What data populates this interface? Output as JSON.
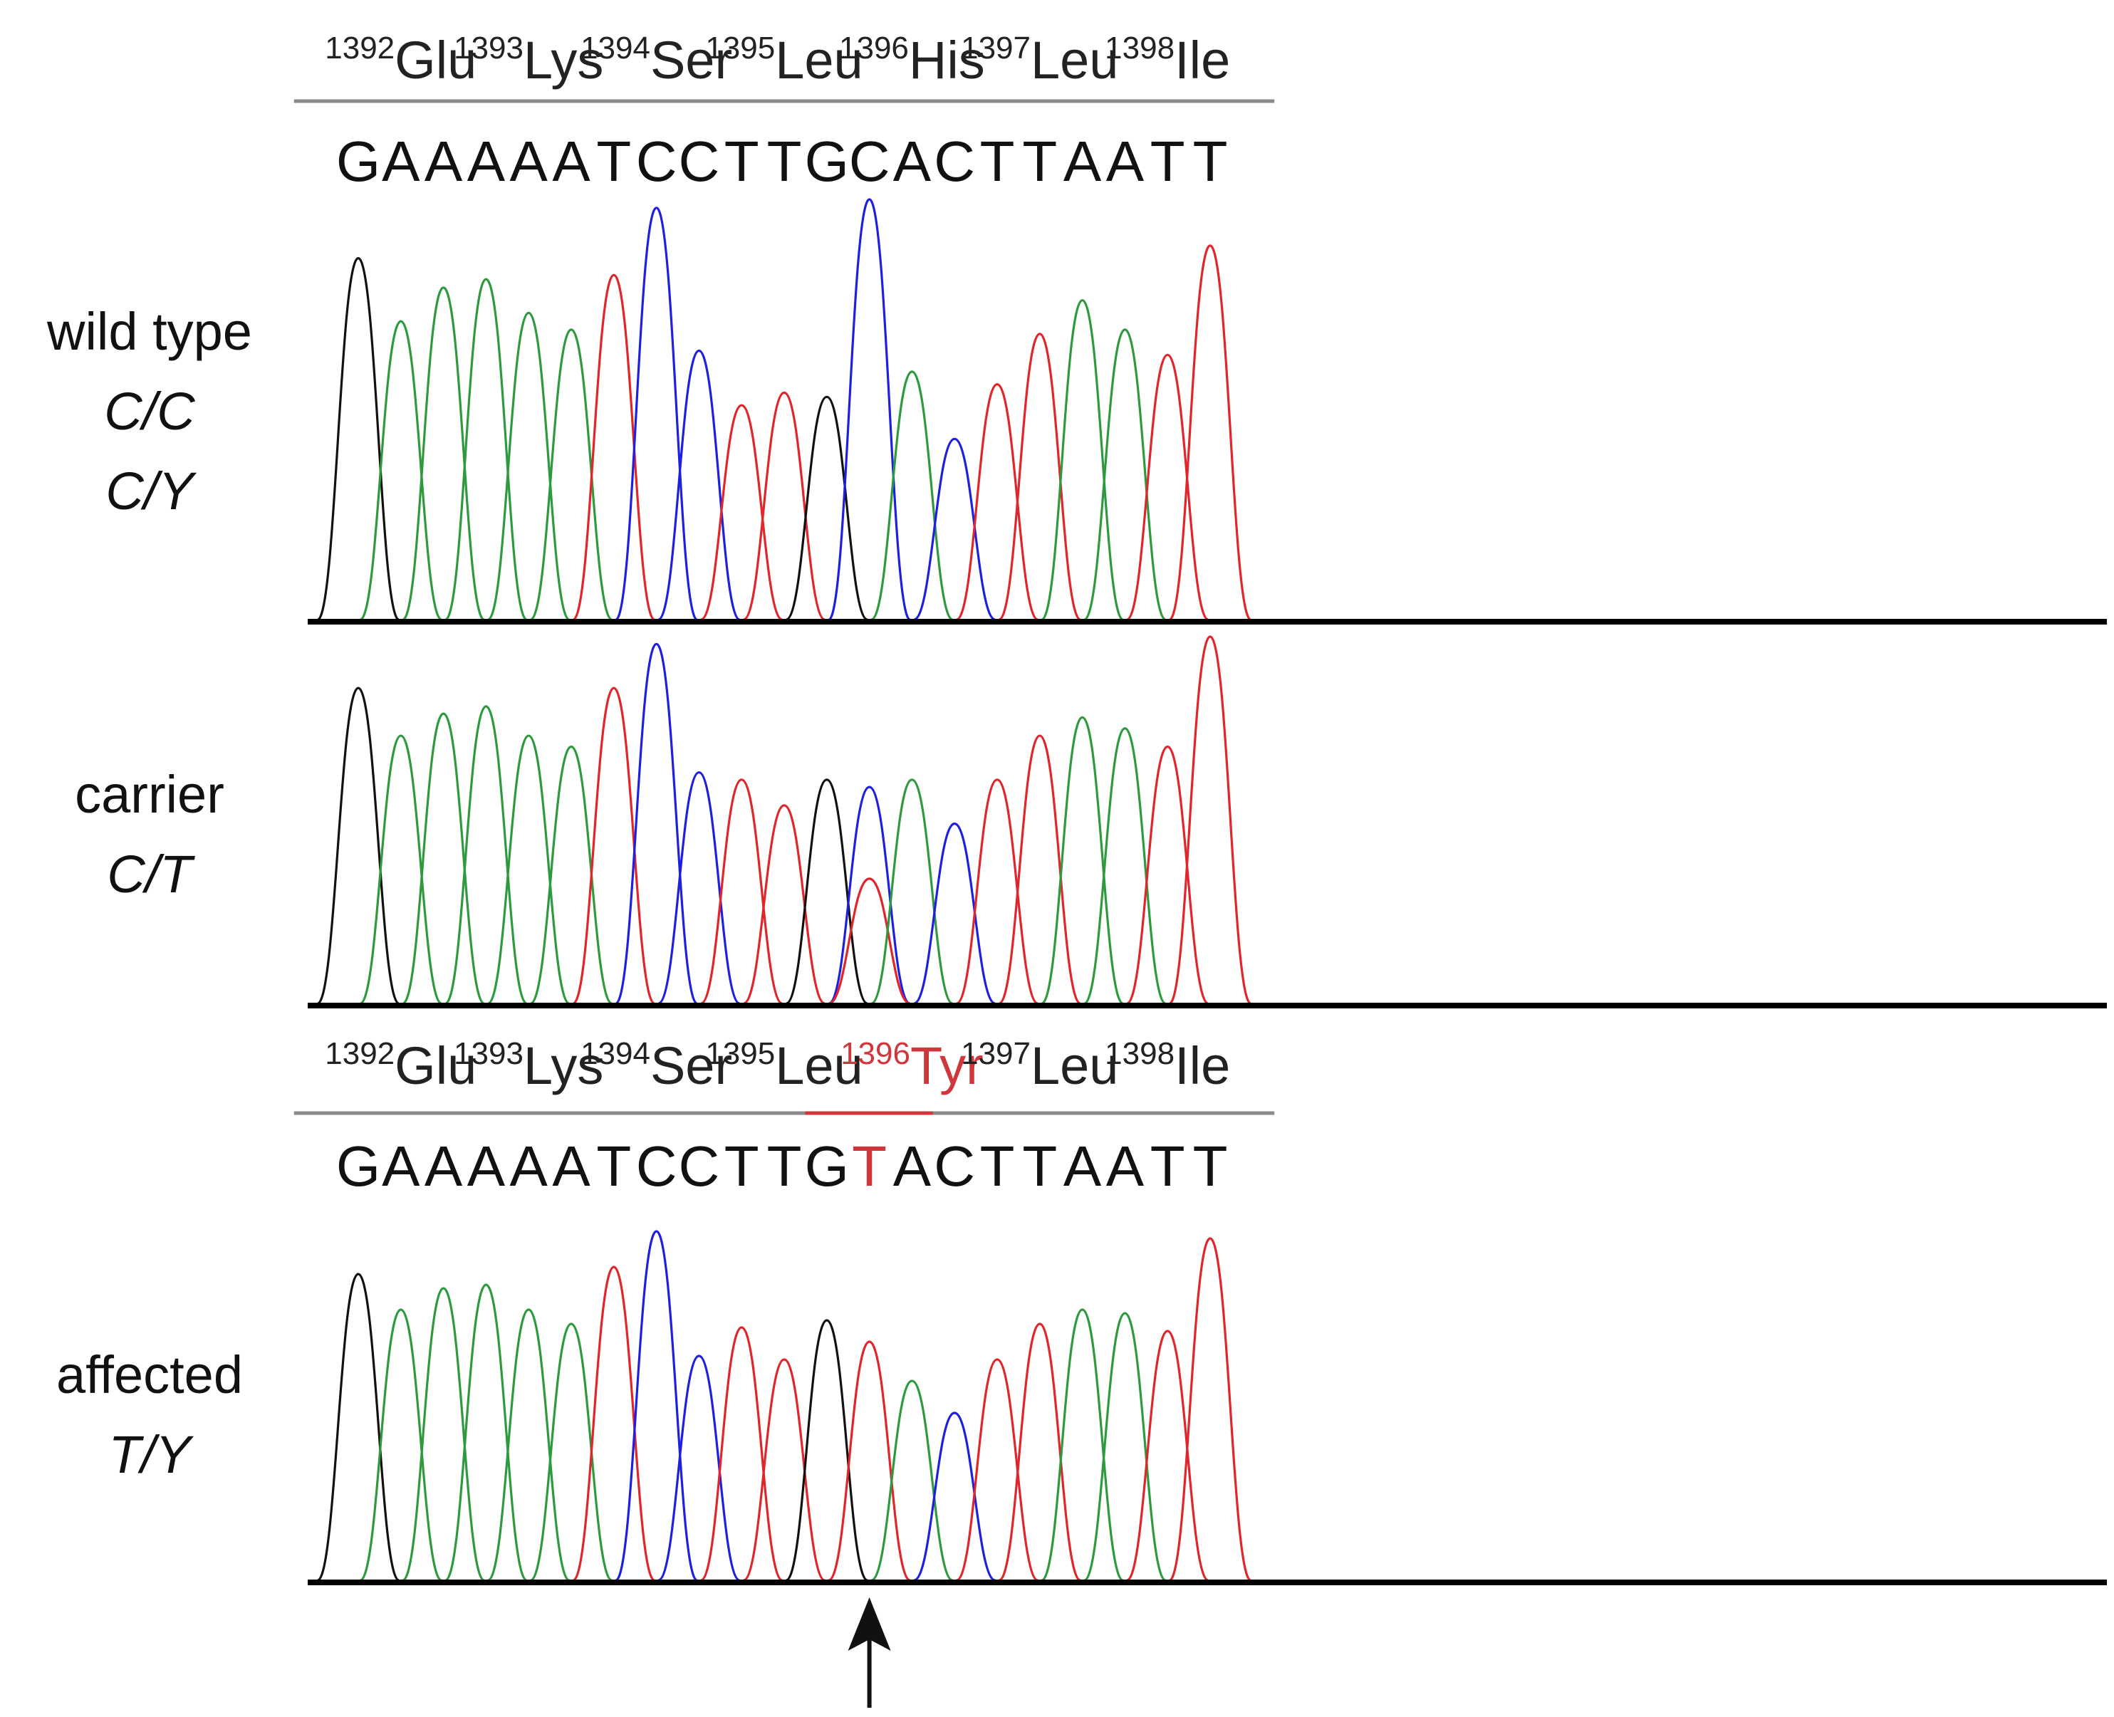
{
  "base_colors": {
    "A": "#2e9a3e",
    "C": "#1f1fe0",
    "G": "#111111",
    "T": "#e0252b"
  },
  "highlight_color": "#d0373c",
  "amino_acid_labels": {
    "wild": [
      {
        "num": "1392",
        "aa": "Glu"
      },
      {
        "num": "1393",
        "aa": "Lys"
      },
      {
        "num": "1394",
        "aa": "Ser"
      },
      {
        "num": "1395",
        "aa": "Leu"
      },
      {
        "num": "1396",
        "aa": "His"
      },
      {
        "num": "1397",
        "aa": "Leu"
      },
      {
        "num": "1398",
        "aa": "Ile"
      }
    ],
    "mutant": [
      {
        "num": "1392",
        "aa": "Glu"
      },
      {
        "num": "1393",
        "aa": "Lys"
      },
      {
        "num": "1394",
        "aa": "Ser"
      },
      {
        "num": "1395",
        "aa": "Leu"
      },
      {
        "num": "1396",
        "aa": "Tyr",
        "highlight": true
      },
      {
        "num": "1397",
        "aa": "Leu"
      },
      {
        "num": "1398",
        "aa": "Ile"
      }
    ]
  },
  "sequences": {
    "wild": [
      "G",
      "A",
      "A",
      "A",
      "A",
      "A",
      "T",
      "C",
      "C",
      "T",
      "T",
      "G",
      "C",
      "A",
      "C",
      "T",
      "T",
      "A",
      "A",
      "T",
      "T"
    ],
    "mutant": [
      "G",
      "A",
      "A",
      "A",
      "A",
      "A",
      "T",
      "C",
      "C",
      "T",
      "T",
      "G",
      "T",
      "A",
      "C",
      "T",
      "T",
      "A",
      "A",
      "T",
      "T"
    ],
    "mutant_highlight_index": 12
  },
  "traces": [
    {
      "name": "wild type",
      "genotypes": [
        "C/C",
        "C/Y"
      ],
      "peaks": [
        {
          "base": "G",
          "h": 0.86
        },
        {
          "base": "A",
          "h": 0.71
        },
        {
          "base": "A",
          "h": 0.79
        },
        {
          "base": "A",
          "h": 0.81
        },
        {
          "base": "A",
          "h": 0.73
        },
        {
          "base": "A",
          "h": 0.69
        },
        {
          "base": "T",
          "h": 0.82
        },
        {
          "base": "C",
          "h": 0.98
        },
        {
          "base": "C",
          "h": 0.64
        },
        {
          "base": "T",
          "h": 0.51
        },
        {
          "base": "T",
          "h": 0.54
        },
        {
          "base": "G",
          "h": 0.53
        },
        {
          "base": "C",
          "h": 1.0
        },
        {
          "base": "A",
          "h": 0.59
        },
        {
          "base": "C",
          "h": 0.43
        },
        {
          "base": "T",
          "h": 0.56
        },
        {
          "base": "T",
          "h": 0.68
        },
        {
          "base": "A",
          "h": 0.76
        },
        {
          "base": "A",
          "h": 0.69
        },
        {
          "base": "T",
          "h": 0.63
        },
        {
          "base": "T",
          "h": 0.89
        }
      ]
    },
    {
      "name": "carrier",
      "genotypes": [
        "C/T"
      ],
      "peaks": [
        {
          "base": "G",
          "h": 0.86
        },
        {
          "base": "A",
          "h": 0.73
        },
        {
          "base": "A",
          "h": 0.79
        },
        {
          "base": "A",
          "h": 0.81
        },
        {
          "base": "A",
          "h": 0.73
        },
        {
          "base": "A",
          "h": 0.7
        },
        {
          "base": "T",
          "h": 0.86
        },
        {
          "base": "C",
          "h": 0.98
        },
        {
          "base": "C",
          "h": 0.63
        },
        {
          "base": "T",
          "h": 0.61
        },
        {
          "base": "T",
          "h": 0.54
        },
        {
          "base": "G",
          "h": 0.61
        },
        {
          "base": "C",
          "h": 0.59,
          "secondary": {
            "base": "T",
            "h": 0.34
          }
        },
        {
          "base": "A",
          "h": 0.61
        },
        {
          "base": "C",
          "h": 0.49
        },
        {
          "base": "T",
          "h": 0.61
        },
        {
          "base": "T",
          "h": 0.73
        },
        {
          "base": "A",
          "h": 0.78
        },
        {
          "base": "A",
          "h": 0.75
        },
        {
          "base": "T",
          "h": 0.7
        },
        {
          "base": "T",
          "h": 1.0
        }
      ]
    },
    {
      "name": "affected",
      "genotypes": [
        "T/Y"
      ],
      "peaks": [
        {
          "base": "G",
          "h": 0.86
        },
        {
          "base": "A",
          "h": 0.76
        },
        {
          "base": "A",
          "h": 0.82
        },
        {
          "base": "A",
          "h": 0.83
        },
        {
          "base": "A",
          "h": 0.76
        },
        {
          "base": "A",
          "h": 0.72
        },
        {
          "base": "T",
          "h": 0.88
        },
        {
          "base": "C",
          "h": 0.98
        },
        {
          "base": "C",
          "h": 0.63
        },
        {
          "base": "T",
          "h": 0.71
        },
        {
          "base": "T",
          "h": 0.62
        },
        {
          "base": "G",
          "h": 0.73
        },
        {
          "base": "T",
          "h": 0.67
        },
        {
          "base": "A",
          "h": 0.56
        },
        {
          "base": "C",
          "h": 0.47
        },
        {
          "base": "T",
          "h": 0.62
        },
        {
          "base": "T",
          "h": 0.72
        },
        {
          "base": "A",
          "h": 0.76
        },
        {
          "base": "A",
          "h": 0.75
        },
        {
          "base": "T",
          "h": 0.7
        },
        {
          "base": "T",
          "h": 0.96
        }
      ]
    }
  ],
  "arrow_base_index": 12
}
